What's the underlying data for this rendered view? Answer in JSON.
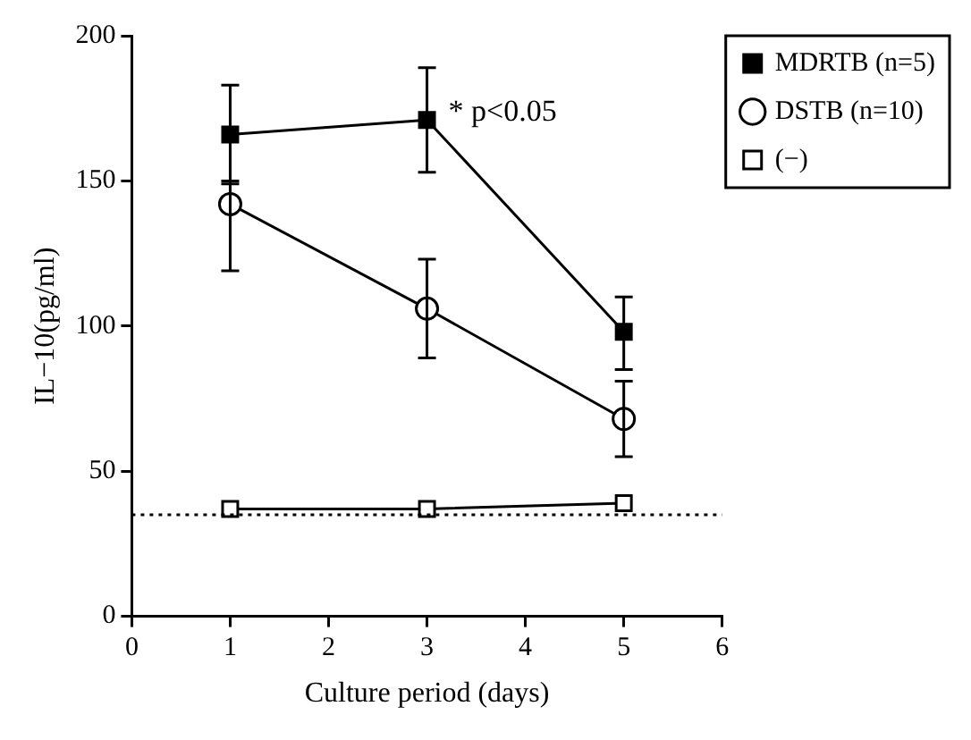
{
  "chart_data": {
    "type": "line",
    "xlabel": "Culture period (days)",
    "ylabel": "IL−10(pg/ml)",
    "x": [
      1,
      3,
      5
    ],
    "series": [
      {
        "name": "MDRTB (n=5)",
        "color": "#000000",
        "marker": "square",
        "values": [
          166,
          171,
          98
        ],
        "errors": [
          [
            149,
            183
          ],
          [
            153,
            189
          ],
          [
            85,
            110
          ]
        ]
      },
      {
        "name": "DSTB (n=10)",
        "color": "#000000",
        "marker": "circle",
        "values": [
          142,
          106,
          68
        ],
        "errors": [
          [
            119,
            150
          ],
          [
            89,
            123
          ],
          [
            55,
            81
          ]
        ]
      },
      {
        "name": "(−)",
        "color": "#000000",
        "marker": "square",
        "values": [
          37,
          37,
          39
        ]
      }
    ],
    "xlim": [
      0,
      6
    ],
    "xticks": [
      0,
      1,
      2,
      3,
      4,
      5,
      6
    ],
    "ylim": [
      0,
      200
    ],
    "yticks": [
      0,
      50,
      100,
      150,
      200
    ],
    "grid": false,
    "legend": "top right",
    "line_style": "solid",
    "ref_lines": [
      {
        "axis": "y",
        "value": 35,
        "line_style": "dotted",
        "color": "#000000"
      }
    ],
    "annotations": [
      {
        "text": "* p<0.05",
        "x": 3,
        "y": 171
      }
    ]
  }
}
